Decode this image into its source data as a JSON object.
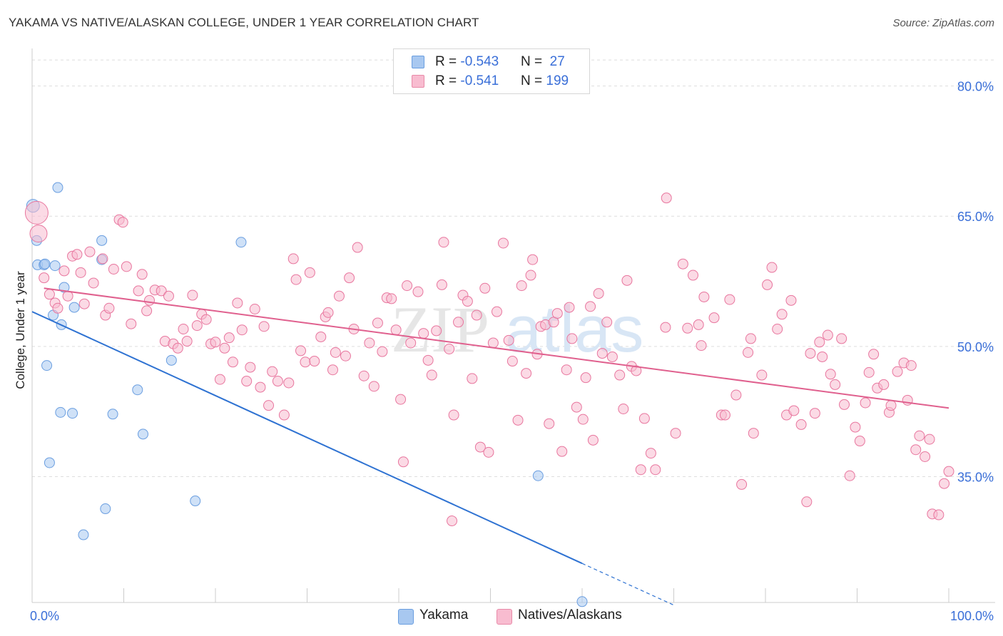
{
  "header": {
    "title": "YAKAMA VS NATIVE/ALASKAN COLLEGE, UNDER 1 YEAR CORRELATION CHART",
    "source": "Source: ZipAtlas.com"
  },
  "watermark": {
    "text_zip": "ZIP",
    "text_atlas": "atlas"
  },
  "legend": {
    "rows": [
      {
        "r_label": "R = ",
        "r_value": "-0.543",
        "n_label": "N = ",
        "n_value": " 27",
        "color": "#a8c8f0",
        "border": "#6a9ee0"
      },
      {
        "r_label": "R = ",
        "r_value": "-0.541",
        "n_label": "N = ",
        "n_value": "199",
        "color": "#f8bcd0",
        "border": "#e88aa8"
      }
    ]
  },
  "bottom_legend": [
    {
      "label": "Yakama",
      "color": "#a8c8f0",
      "border": "#6a9ee0"
    },
    {
      "label": "Natives/Alaskans",
      "color": "#f8bcd0",
      "border": "#e88aa8"
    }
  ],
  "chart_data": {
    "type": "scatter",
    "title": "YAKAMA VS NATIVE/ALASKAN COLLEGE, UNDER 1 YEAR CORRELATION CHART",
    "xlabel": "",
    "ylabel": "College, Under 1 year",
    "xlim": [
      0,
      100
    ],
    "ylim": [
      20.5,
      83.5
    ],
    "x_tick_labels": [
      {
        "value": 0,
        "label": "0.0%"
      },
      {
        "value": 100,
        "label": "100.0%"
      }
    ],
    "y_tick_labels": [
      {
        "value": 35,
        "label": "35.0%"
      },
      {
        "value": 50,
        "label": "50.0%"
      },
      {
        "value": 65,
        "label": "65.0%"
      },
      {
        "value": 80,
        "label": "80.0%"
      }
    ],
    "x_minor_ticks": [
      0,
      10,
      20,
      30,
      40,
      50,
      60,
      70,
      80,
      90,
      100
    ],
    "grid": true,
    "series": [
      {
        "name": "Yakama",
        "color": "#6a9ee0",
        "fill": "#a8c8f0",
        "trend": {
          "x0": 0,
          "y0": 54.0,
          "x1": 60,
          "y1": 25.0,
          "dash_to_x": 70,
          "dash_to_y": 20.2
        },
        "points": [
          [
            0.1,
            66.2,
            9
          ],
          [
            0.5,
            62.2,
            7
          ],
          [
            2.8,
            68.3,
            7
          ],
          [
            0.6,
            59.4,
            7
          ],
          [
            1.3,
            59.4,
            7
          ],
          [
            1.4,
            59.5,
            7
          ],
          [
            2.5,
            59.3,
            7
          ],
          [
            3.5,
            56.8,
            7
          ],
          [
            4.6,
            54.5,
            7
          ],
          [
            2.3,
            53.6,
            7
          ],
          [
            3.2,
            52.5,
            7
          ],
          [
            7.6,
            60.0,
            7
          ],
          [
            7.6,
            62.2,
            7
          ],
          [
            22.8,
            62.0,
            7
          ],
          [
            1.6,
            47.8,
            7
          ],
          [
            15.2,
            48.4,
            7
          ],
          [
            11.5,
            45.0,
            7
          ],
          [
            3.1,
            42.4,
            7
          ],
          [
            4.4,
            42.3,
            7
          ],
          [
            8.8,
            42.2,
            7
          ],
          [
            12.1,
            39.9,
            7
          ],
          [
            1.9,
            36.6,
            7
          ],
          [
            55.2,
            35.1,
            7
          ],
          [
            17.8,
            32.2,
            7
          ],
          [
            8.0,
            31.3,
            7
          ],
          [
            5.6,
            28.3,
            7
          ],
          [
            60.0,
            20.6,
            7
          ]
        ]
      },
      {
        "name": "Natives/Alaskans",
        "color": "#e8769e",
        "fill": "#f8bcd0",
        "trend": {
          "x0": 1.3,
          "y0": 56.7,
          "x1": 100,
          "y1": 42.9
        },
        "points": [
          [
            0.5,
            65.4,
            16
          ],
          [
            0.7,
            63.0,
            12
          ],
          [
            1.3,
            57.9,
            7
          ],
          [
            1.9,
            56.0,
            7
          ],
          [
            2.5,
            55.0,
            7
          ],
          [
            2.8,
            54.4,
            7
          ],
          [
            3.5,
            58.7,
            7
          ],
          [
            3.9,
            55.8,
            7
          ],
          [
            4.4,
            60.4,
            7
          ],
          [
            4.9,
            60.6,
            7
          ],
          [
            5.3,
            58.5,
            7
          ],
          [
            5.7,
            54.9,
            7
          ],
          [
            6.3,
            60.9,
            7
          ],
          [
            6.7,
            57.3,
            7
          ],
          [
            7.7,
            60.1,
            7
          ],
          [
            8.0,
            53.6,
            7
          ],
          [
            8.4,
            54.4,
            7
          ],
          [
            8.9,
            58.9,
            7
          ],
          [
            9.5,
            64.6,
            7
          ],
          [
            9.9,
            64.3,
            7
          ],
          [
            10.3,
            59.2,
            7
          ],
          [
            10.8,
            52.6,
            7
          ],
          [
            11.6,
            56.4,
            7
          ],
          [
            12.0,
            58.3,
            7
          ],
          [
            12.5,
            54.1,
            7
          ],
          [
            12.8,
            55.3,
            7
          ],
          [
            13.4,
            56.5,
            7
          ],
          [
            14.1,
            56.4,
            7
          ],
          [
            14.5,
            50.6,
            7
          ],
          [
            14.9,
            55.8,
            7
          ],
          [
            15.4,
            50.3,
            7
          ],
          [
            15.9,
            49.8,
            7
          ],
          [
            16.5,
            52.0,
            7
          ],
          [
            16.9,
            50.6,
            7
          ],
          [
            17.5,
            55.9,
            7
          ],
          [
            18.0,
            52.4,
            7
          ],
          [
            18.5,
            53.7,
            7
          ],
          [
            19.0,
            53.1,
            7
          ],
          [
            19.5,
            50.3,
            7
          ],
          [
            20.0,
            50.5,
            7
          ],
          [
            20.5,
            46.2,
            7
          ],
          [
            21.0,
            49.8,
            7
          ],
          [
            21.5,
            51.0,
            7
          ],
          [
            21.9,
            48.2,
            7
          ],
          [
            22.4,
            55.0,
            7
          ],
          [
            22.9,
            51.9,
            7
          ],
          [
            23.4,
            46.0,
            7
          ],
          [
            23.8,
            47.6,
            7
          ],
          [
            24.3,
            54.3,
            7
          ],
          [
            24.9,
            45.3,
            7
          ],
          [
            25.3,
            52.3,
            7
          ],
          [
            25.8,
            43.2,
            7
          ],
          [
            26.2,
            47.1,
            7
          ],
          [
            26.8,
            46.0,
            7
          ],
          [
            27.5,
            42.1,
            7
          ],
          [
            28.0,
            45.8,
            7
          ],
          [
            28.5,
            60.1,
            7
          ],
          [
            28.8,
            57.7,
            7
          ],
          [
            29.3,
            49.5,
            7
          ],
          [
            29.8,
            48.2,
            7
          ],
          [
            30.3,
            58.5,
            7
          ],
          [
            30.8,
            48.3,
            7
          ],
          [
            31.5,
            51.1,
            7
          ],
          [
            32.0,
            53.4,
            7
          ],
          [
            32.3,
            53.9,
            7
          ],
          [
            32.8,
            47.3,
            7
          ],
          [
            33.1,
            49.3,
            7
          ],
          [
            33.5,
            55.8,
            7
          ],
          [
            34.2,
            48.9,
            7
          ],
          [
            34.6,
            57.9,
            7
          ],
          [
            35.1,
            52.0,
            7
          ],
          [
            35.5,
            61.4,
            7
          ],
          [
            36.2,
            46.6,
            7
          ],
          [
            36.8,
            50.4,
            7
          ],
          [
            37.3,
            45.4,
            7
          ],
          [
            37.7,
            52.7,
            7
          ],
          [
            38.2,
            49.4,
            7
          ],
          [
            38.7,
            55.6,
            7
          ],
          [
            39.2,
            55.5,
            7
          ],
          [
            39.7,
            51.9,
            7
          ],
          [
            40.2,
            43.9,
            7
          ],
          [
            40.5,
            36.7,
            7
          ],
          [
            40.9,
            57.0,
            7
          ],
          [
            41.3,
            50.4,
            7
          ],
          [
            42.1,
            56.3,
            7
          ],
          [
            42.7,
            51.5,
            7
          ],
          [
            43.2,
            48.4,
            7
          ],
          [
            43.6,
            46.7,
            7
          ],
          [
            44.1,
            51.8,
            7
          ],
          [
            44.7,
            57.1,
            7
          ],
          [
            44.9,
            62.0,
            7
          ],
          [
            45.5,
            49.7,
            7
          ],
          [
            46.0,
            42.1,
            7
          ],
          [
            45.8,
            29.9,
            7
          ],
          [
            46.5,
            52.8,
            7
          ],
          [
            47.0,
            55.9,
            7
          ],
          [
            47.5,
            55.2,
            7
          ],
          [
            48.0,
            46.3,
            7
          ],
          [
            48.5,
            53.6,
            7
          ],
          [
            48.9,
            38.4,
            7
          ],
          [
            49.4,
            56.7,
            7
          ],
          [
            49.8,
            37.8,
            7
          ],
          [
            50.3,
            50.4,
            7
          ],
          [
            50.7,
            54.0,
            7
          ],
          [
            51.4,
            61.9,
            7
          ],
          [
            52.0,
            50.7,
            7
          ],
          [
            52.4,
            48.3,
            7
          ],
          [
            53.0,
            41.5,
            7
          ],
          [
            53.4,
            57.0,
            7
          ],
          [
            53.9,
            46.9,
            7
          ],
          [
            54.4,
            58.2,
            7
          ],
          [
            54.6,
            60.0,
            7
          ],
          [
            55.1,
            49.1,
            7
          ],
          [
            55.5,
            52.3,
            7
          ],
          [
            56.0,
            52.5,
            7
          ],
          [
            56.4,
            41.1,
            7
          ],
          [
            56.9,
            52.8,
            7
          ],
          [
            57.3,
            53.8,
            7
          ],
          [
            57.8,
            37.9,
            7
          ],
          [
            58.3,
            47.3,
            7
          ],
          [
            58.6,
            54.5,
            7
          ],
          [
            58.9,
            50.9,
            7
          ],
          [
            59.4,
            43.0,
            7
          ],
          [
            60.1,
            41.6,
            7
          ],
          [
            60.4,
            46.4,
            7
          ],
          [
            60.9,
            54.6,
            7
          ],
          [
            61.2,
            39.2,
            7
          ],
          [
            61.8,
            56.1,
            7
          ],
          [
            62.2,
            49.2,
            7
          ],
          [
            62.7,
            52.8,
            7
          ],
          [
            63.3,
            48.8,
            7
          ],
          [
            64.1,
            46.7,
            7
          ],
          [
            64.5,
            42.8,
            7
          ],
          [
            64.9,
            57.6,
            7
          ],
          [
            65.4,
            47.7,
            7
          ],
          [
            65.9,
            47.2,
            7
          ],
          [
            66.4,
            35.8,
            7
          ],
          [
            66.8,
            41.7,
            7
          ],
          [
            67.5,
            37.7,
            7
          ],
          [
            68.0,
            35.8,
            7
          ],
          [
            69.2,
            67.1,
            7
          ],
          [
            69.1,
            52.2,
            7
          ],
          [
            70.2,
            40.0,
            7
          ],
          [
            71.0,
            59.5,
            7
          ],
          [
            71.5,
            52.1,
            7
          ],
          [
            72.1,
            58.2,
            7
          ],
          [
            72.7,
            52.5,
            7
          ],
          [
            73.0,
            50.1,
            7
          ],
          [
            73.3,
            55.7,
            7
          ],
          [
            74.4,
            53.3,
            7
          ],
          [
            75.2,
            42.1,
            7
          ],
          [
            75.6,
            42.1,
            7
          ],
          [
            76.1,
            55.4,
            7
          ],
          [
            76.8,
            44.4,
            7
          ],
          [
            77.4,
            34.1,
            7
          ],
          [
            78.1,
            49.3,
            7
          ],
          [
            78.4,
            50.9,
            7
          ],
          [
            78.7,
            40.0,
            7
          ],
          [
            79.6,
            46.7,
            7
          ],
          [
            80.2,
            57.1,
            7
          ],
          [
            80.7,
            59.1,
            7
          ],
          [
            81.3,
            52.0,
            7
          ],
          [
            81.8,
            53.7,
            7
          ],
          [
            82.3,
            42.1,
            7
          ],
          [
            82.8,
            55.3,
            7
          ],
          [
            83.1,
            42.6,
            7
          ],
          [
            83.9,
            41.0,
            7
          ],
          [
            84.5,
            32.1,
            7
          ],
          [
            84.9,
            49.2,
            7
          ],
          [
            85.4,
            42.3,
            7
          ],
          [
            85.9,
            50.5,
            7
          ],
          [
            86.2,
            48.8,
            7
          ],
          [
            86.8,
            51.3,
            7
          ],
          [
            87.1,
            46.8,
            7
          ],
          [
            87.6,
            45.6,
            7
          ],
          [
            88.3,
            50.9,
            7
          ],
          [
            88.6,
            43.3,
            7
          ],
          [
            89.2,
            35.1,
            7
          ],
          [
            89.8,
            40.7,
            7
          ],
          [
            90.3,
            39.1,
            7
          ],
          [
            90.9,
            43.5,
            7
          ],
          [
            91.3,
            47.0,
            7
          ],
          [
            91.8,
            49.1,
            7
          ],
          [
            92.2,
            45.2,
            7
          ],
          [
            92.9,
            45.6,
            7
          ],
          [
            93.5,
            42.4,
            7
          ],
          [
            93.7,
            43.2,
            7
          ],
          [
            94.4,
            47.1,
            7
          ],
          [
            95.1,
            48.1,
            7
          ],
          [
            95.5,
            43.8,
            7
          ],
          [
            95.9,
            47.8,
            7
          ],
          [
            96.4,
            38.1,
            7
          ],
          [
            96.8,
            39.7,
            7
          ],
          [
            97.4,
            37.3,
            7
          ],
          [
            97.9,
            39.3,
            7
          ],
          [
            98.2,
            30.7,
            7
          ],
          [
            98.9,
            30.6,
            7
          ],
          [
            99.5,
            34.2,
            7
          ],
          [
            100.0,
            35.6,
            7
          ]
        ]
      }
    ]
  }
}
